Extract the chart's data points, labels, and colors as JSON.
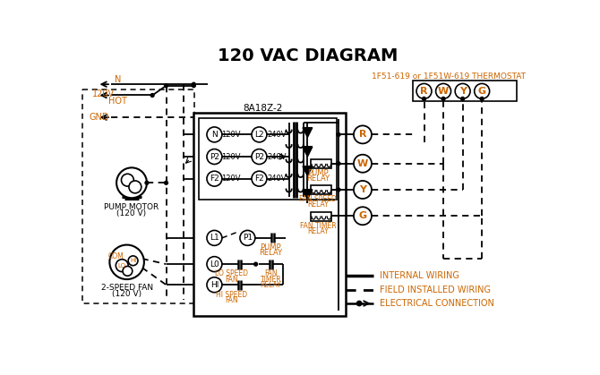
{
  "title": "120 VAC DIAGRAM",
  "bg_color": "#ffffff",
  "orange_color": "#cc6600",
  "thermostat_label": "1F51-619 or 1F51W-619 THERMOSTAT",
  "box_label": "8A18Z-2",
  "legend_internal": "INTERNAL WIRING",
  "legend_field": "FIELD INSTALLED WIRING",
  "legend_electrical": "ELECTRICAL CONNECTION"
}
